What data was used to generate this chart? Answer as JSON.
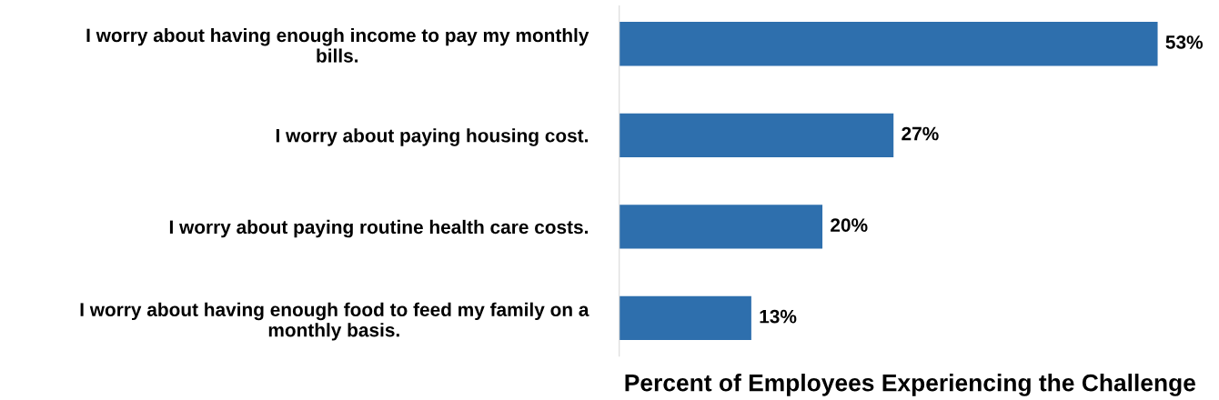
{
  "chart_data": {
    "type": "bar",
    "orientation": "horizontal",
    "xlabel": "Percent of Employees Experiencing the Challenge",
    "categories": [
      "I worry about having enough income to pay my monthly\nbills.",
      "I worry about paying housing cost.",
      "I worry about paying routine health care costs.",
      "I worry about having enough food to feed my family on a\nmonthly basis."
    ],
    "values": [
      53,
      27,
      20,
      13
    ],
    "value_labels": [
      "53%",
      "27%",
      "20%",
      "13%"
    ],
    "color": "#2e6fad",
    "grid": false,
    "legend": false
  }
}
